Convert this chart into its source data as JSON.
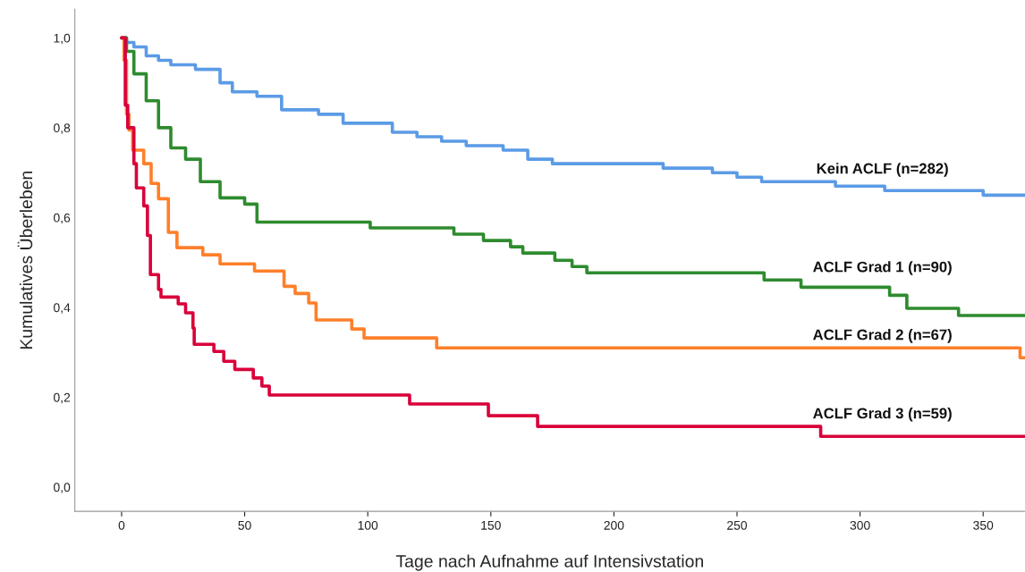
{
  "chart_data": {
    "type": "step",
    "xlabel": "Tage nach Aufnahme auf Intensivstation",
    "ylabel": "Kumulatives Überleben",
    "xlim": [
      -19,
      367
    ],
    "ylim": [
      -0.054,
      1.064
    ],
    "xticks": [
      0,
      50,
      100,
      150,
      200,
      250,
      300,
      350
    ],
    "yticks": [
      {
        "value": 0,
        "label": "0,0"
      },
      {
        "value": 0.2,
        "label": "0,2"
      },
      {
        "value": 0.4,
        "label": "0,4"
      },
      {
        "value": 0.6,
        "label": "0,6"
      },
      {
        "value": 0.8,
        "label": "0,8"
      },
      {
        "value": 1.0,
        "label": "1,0"
      }
    ],
    "grid": false,
    "legend": false,
    "series": [
      {
        "name": "Kein ACLF (n=282)",
        "color": "#5b9be6",
        "x": [
          0,
          2,
          5,
          10,
          15,
          20,
          30,
          40,
          45,
          55,
          65,
          80,
          90,
          110,
          120,
          130,
          140,
          155,
          165,
          175,
          200,
          220,
          240,
          250,
          260,
          275,
          290,
          310,
          340,
          350,
          367
        ],
        "values": [
          1.0,
          0.99,
          0.98,
          0.96,
          0.95,
          0.94,
          0.93,
          0.9,
          0.88,
          0.87,
          0.84,
          0.83,
          0.81,
          0.79,
          0.78,
          0.77,
          0.76,
          0.75,
          0.73,
          0.72,
          0.72,
          0.71,
          0.7,
          0.69,
          0.68,
          0.68,
          0.67,
          0.66,
          0.66,
          0.65,
          0.65
        ]
      },
      {
        "name": "ACLF Grad 1 (n=90)",
        "color": "#2e8b2e",
        "x": [
          0,
          2,
          5,
          10,
          15,
          20,
          26,
          32,
          40,
          50,
          55,
          101,
          135,
          147,
          158,
          163,
          176,
          183,
          189,
          261,
          276,
          312,
          319,
          340,
          367
        ],
        "values": [
          1.0,
          0.97,
          0.92,
          0.86,
          0.8,
          0.755,
          0.73,
          0.68,
          0.644,
          0.63,
          0.59,
          0.577,
          0.563,
          0.549,
          0.535,
          0.521,
          0.505,
          0.491,
          0.477,
          0.461,
          0.445,
          0.427,
          0.398,
          0.382,
          0.382
        ]
      },
      {
        "name": "ACLF Grad 2 (n=67)",
        "color": "#ff7f2a",
        "x": [
          0,
          1,
          2,
          3,
          4.5,
          9,
          12,
          15,
          19,
          22.5,
          33,
          40,
          54,
          66,
          70.5,
          76,
          79,
          93.5,
          98.5,
          128,
          365,
          367
        ],
        "values": [
          1.0,
          0.95,
          0.83,
          0.795,
          0.75,
          0.72,
          0.676,
          0.642,
          0.567,
          0.533,
          0.517,
          0.497,
          0.481,
          0.447,
          0.431,
          0.41,
          0.372,
          0.352,
          0.332,
          0.31,
          0.288,
          0.288
        ]
      },
      {
        "name": "ACLF Grad 3 (n=59)",
        "color": "#d9003a",
        "x": [
          0,
          1.5,
          2.5,
          5,
          6,
          9,
          10.5,
          11.7,
          15,
          16,
          23,
          26,
          29,
          29.5,
          37.5,
          41.5,
          46,
          53.5,
          57,
          60,
          117,
          149,
          169,
          284,
          367
        ],
        "values": [
          1.0,
          0.85,
          0.8,
          0.72,
          0.666,
          0.626,
          0.56,
          0.473,
          0.44,
          0.423,
          0.408,
          0.388,
          0.354,
          0.318,
          0.302,
          0.28,
          0.262,
          0.243,
          0.225,
          0.205,
          0.185,
          0.159,
          0.135,
          0.113,
          0.113
        ]
      }
    ]
  }
}
